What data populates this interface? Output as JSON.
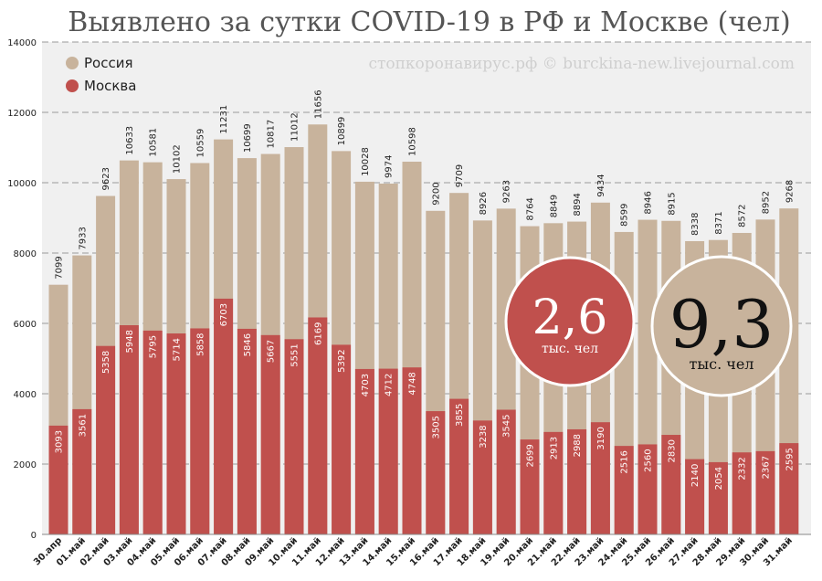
{
  "chart_data": {
    "type": "bar",
    "title": "Выявлено за сутки COVID-19 в РФ и Москве (чел)",
    "watermark": "стопкоронавирус.рф © burckina-new.livejournal.com",
    "categories": [
      "30.апр",
      "01.май",
      "02.май",
      "03.май",
      "04.май",
      "05.май",
      "06.май",
      "07.май",
      "08.май",
      "09.май",
      "10.май",
      "11.май",
      "12.май",
      "13.май",
      "14.май",
      "15.май",
      "16.май",
      "17.май",
      "18.май",
      "19.май",
      "20.май",
      "21.май",
      "22.май",
      "23.май",
      "24.май",
      "25.май",
      "26.май",
      "27.май",
      "28.май",
      "29.май",
      "30.май",
      "31.май"
    ],
    "series": [
      {
        "name": "Россия",
        "color": "#c8b39c",
        "values": [
          7099,
          7933,
          9623,
          10633,
          10581,
          10102,
          10559,
          11231,
          10699,
          10817,
          11012,
          11656,
          10899,
          10028,
          9974,
          10598,
          9200,
          9709,
          8926,
          9263,
          8764,
          8849,
          8894,
          9434,
          8599,
          8946,
          8915,
          8338,
          8371,
          8572,
          8952,
          9268
        ]
      },
      {
        "name": "Москва",
        "color": "#c0504d",
        "values": [
          3093,
          3561,
          5358,
          5948,
          5795,
          5714,
          5858,
          6703,
          5846,
          5667,
          5551,
          6169,
          5392,
          4703,
          4712,
          4748,
          3505,
          3855,
          3238,
          3545,
          2699,
          2913,
          2988,
          3190,
          2516,
          2560,
          2830,
          2140,
          2054,
          2332,
          2367,
          2595
        ]
      }
    ],
    "ylim": [
      0,
      14000
    ],
    "yticks": [
      0,
      2000,
      4000,
      6000,
      8000,
      10000,
      12000,
      14000
    ],
    "grid": true,
    "legend": "top-left",
    "callouts": [
      {
        "value": "2,6",
        "unit": "тыс. чел",
        "color": "#c0504d"
      },
      {
        "value": "9,3",
        "unit": "тыс. чел",
        "color": "#c8b39c"
      }
    ]
  }
}
